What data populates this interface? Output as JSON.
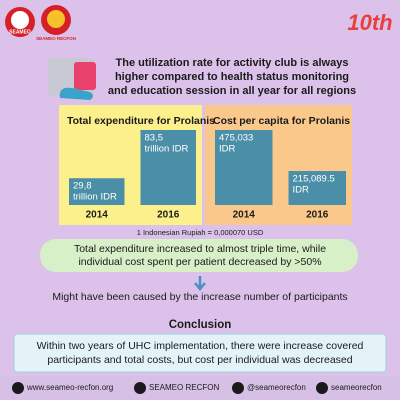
{
  "header": {
    "logo_left": "SEAMEO",
    "logo_mid": "SEAMEO RECFON",
    "logo_right": "10th",
    "title": [
      "The utilization rate for activity club is always",
      "higher compared to health status monitoring",
      "and education session in all year for all regions"
    ]
  },
  "panels": [
    {
      "title": "Total expenditure for Prolanis",
      "categories": [
        "2014",
        "2016"
      ],
      "values": [
        29.8,
        83.5
      ],
      "value_labels": [
        [
          "29,8",
          "trillion IDR"
        ],
        [
          "83,5",
          "trillion IDR"
        ]
      ]
    },
    {
      "title": "Cost per capita for Prolanis",
      "categories": [
        "2014",
        "2016"
      ],
      "values": [
        475033,
        215089.5
      ],
      "value_labels": [
        [
          "475,033",
          "IDR"
        ],
        [
          "215,089.5",
          "IDR"
        ]
      ]
    }
  ],
  "note": "1 Indonesian Rupiah = 0,000070 USD",
  "finding": [
    "Total expenditure increased to almost triple time, while",
    "individual cost spent per patient decreased by >50%"
  ],
  "cause": "Might have been caused by the increase number of participants",
  "conclusion": {
    "heading": "Conclusion",
    "text": [
      "Within two years of UHC implementation, there were increase covered",
      "participants and total costs, but cost per individual was decreased"
    ]
  },
  "footer": [
    "www.seameo-recfon.org",
    "SEAMEO RECFON",
    "@seameorecfon",
    "seameorecfon"
  ]
}
